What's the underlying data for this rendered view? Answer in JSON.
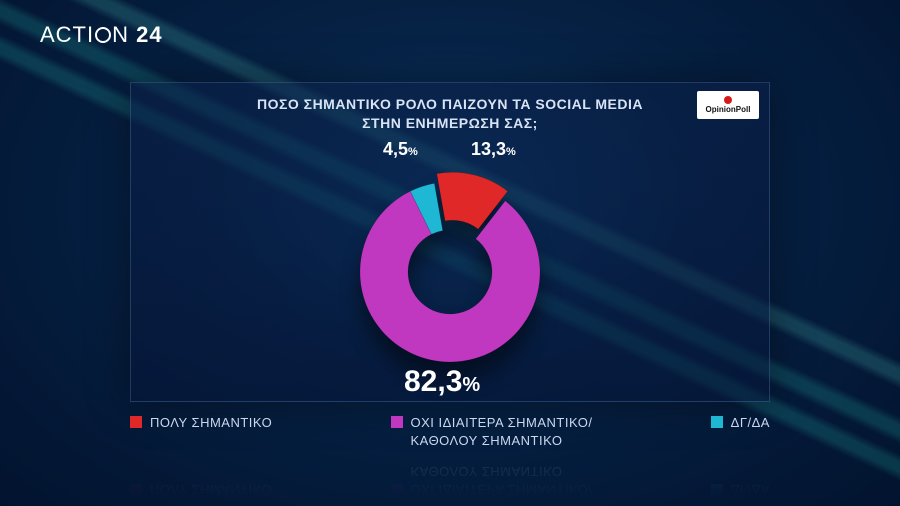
{
  "broadcast": {
    "channel_name_pre": "ACTI",
    "channel_name_post": "N",
    "channel_number": "24"
  },
  "panel": {
    "title_line1": "ΠΟΣΟ ΣΗΜΑΝΤΙΚΟ ΡΟΛΟ ΠΑΙΖΟΥΝ ΤΑ SOCIAL MEDIA",
    "title_line2": "ΣΤΗΝ ΕΝΗΜΕΡΩΣΗ ΣΑΣ;",
    "poll_source": "OpinionPoll"
  },
  "chart": {
    "type": "donut",
    "background_color": "transparent",
    "slices": [
      {
        "key": "very_important",
        "label": "ΠΟΛΥ ΣΗΜΑΝΤΙΚΟ",
        "value": 13.3,
        "display": "13,3",
        "color": "#e02828"
      },
      {
        "key": "not_important",
        "label": "ΟΧΙ ΙΔΙΑΙΤΕΡΑ ΣΗΜΑΝΤΙΚΟ/\nΚΑΘΟΛΟΥ ΣΗΜΑΝΤΙΚΟ",
        "value": 82.3,
        "display": "82,3",
        "color": "#c037c0"
      },
      {
        "key": "dk_na",
        "label": "ΔΓ/ΔΑ",
        "value": 4.5,
        "display": "4,5",
        "color": "#1fb8d4"
      }
    ],
    "outer_radius": 90,
    "inner_radius": 42,
    "pull_out_slice": "very_important",
    "pull_out_distance": 10,
    "callout_fontsize_small": 18,
    "callout_fontsize_big": 30,
    "percent_sign": "%",
    "start_angle_deg": -10
  },
  "legend": {
    "items": [
      {
        "swatch": "#e02828",
        "label": "ΠΟΛΥ ΣΗΜΑΝΤΙΚΟ"
      },
      {
        "swatch": "#c037c0",
        "label": "ΟΧΙ ΙΔΙΑΙΤΕΡΑ ΣΗΜΑΝΤΙΚΟ/\nΚΑΘΟΛΟΥ ΣΗΜΑΝΤΙΚΟ"
      },
      {
        "swatch": "#1fb8d4",
        "label": "ΔΓ/ΔΑ"
      }
    ]
  },
  "colors": {
    "text_light": "#d8e4f5",
    "panel_border": "rgba(120,160,220,0.25)"
  }
}
